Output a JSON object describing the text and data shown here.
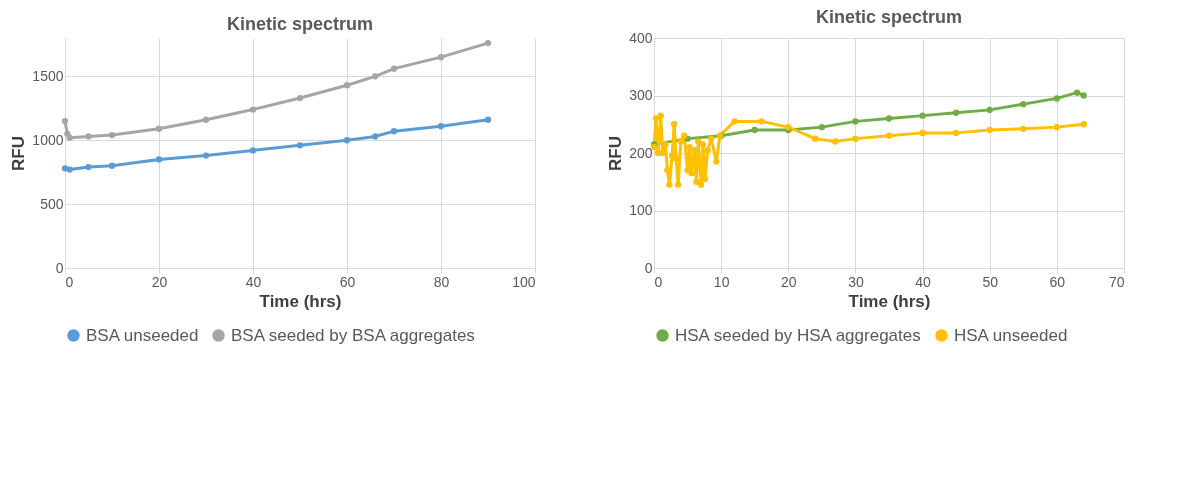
{
  "chart_data": [
    {
      "type": "line",
      "title": "Kinetic spectrum",
      "xlabel": "Time (hrs)",
      "ylabel": "RFU",
      "xlim": [
        0,
        100
      ],
      "xticks": [
        0,
        20,
        40,
        60,
        80,
        100
      ],
      "ylim": [
        0,
        1800
      ],
      "yticks": [
        0,
        500,
        1000,
        1500
      ],
      "grid": true,
      "legend": "bottom",
      "marker": "circle",
      "series": [
        {
          "name": "BSA unseeded",
          "color": "#5b9bd5",
          "x": [
            0,
            1,
            5,
            10,
            20,
            30,
            40,
            50,
            60,
            66,
            70,
            80,
            90
          ],
          "values": [
            780,
            770,
            790,
            800,
            850,
            880,
            920,
            960,
            1000,
            1030,
            1070,
            1110,
            1160
          ]
        },
        {
          "name": "BSA seeded by BSA aggregates",
          "color": "#a5a5a5",
          "x": [
            0,
            0.5,
            1,
            5,
            10,
            20,
            30,
            40,
            50,
            60,
            66,
            70,
            80,
            90
          ],
          "values": [
            1150,
            1050,
            1020,
            1030,
            1040,
            1090,
            1160,
            1240,
            1330,
            1430,
            1500,
            1560,
            1650,
            1760
          ]
        }
      ]
    },
    {
      "type": "line",
      "title": "Kinetic spectrum",
      "xlabel": "Time (hrs)",
      "ylabel": "RFU",
      "xlim": [
        0,
        70
      ],
      "xticks": [
        0,
        10,
        20,
        30,
        40,
        50,
        60,
        70
      ],
      "ylim": [
        0,
        400
      ],
      "yticks": [
        0,
        100,
        200,
        300,
        400
      ],
      "grid": true,
      "legend": "bottom",
      "marker": "circle",
      "series": [
        {
          "name": "HSA seeded by HSA aggregates",
          "color": "#70ad47",
          "x": [
            0,
            5,
            10,
            15,
            20,
            25,
            30,
            35,
            40,
            45,
            50,
            55,
            60,
            63,
            64
          ],
          "values": [
            215,
            225,
            230,
            240,
            240,
            245,
            255,
            260,
            265,
            270,
            275,
            285,
            295,
            305,
            300
          ]
        },
        {
          "name": "HSA unseeded",
          "color": "#ffc000",
          "x": [
            0,
            0.3,
            0.6,
            1,
            1.3,
            1.7,
            2,
            2.3,
            2.7,
            3,
            3.3,
            3.6,
            4,
            4.5,
            5,
            5.3,
            5.6,
            6,
            6.3,
            6.6,
            7,
            7.3,
            7.6,
            8,
            8.5,
            9.3,
            9.8,
            12,
            16,
            20,
            24,
            27,
            30,
            35,
            40,
            45,
            50,
            55,
            60,
            64
          ],
          "values": [
            210,
            260,
            200,
            265,
            200,
            215,
            170,
            145,
            195,
            250,
            190,
            145,
            220,
            230,
            170,
            210,
            165,
            205,
            150,
            220,
            145,
            215,
            155,
            205,
            225,
            185,
            230,
            255,
            255,
            245,
            225,
            220,
            225,
            230,
            235,
            235,
            240,
            242,
            245,
            250
          ]
        }
      ]
    }
  ]
}
